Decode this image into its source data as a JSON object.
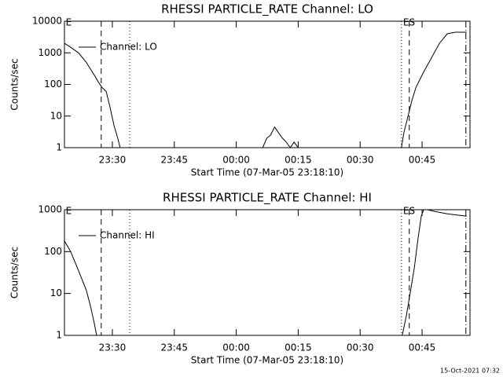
{
  "chart_data": [
    {
      "type": "line",
      "title": "RHESSI PARTICLE_RATE Channel: LO",
      "ylabel": "Counts/sec",
      "xlabel": "Start Time (07-Mar-05 23:18:10)",
      "log_y": true,
      "grid": false,
      "legend": "upper left",
      "xlim": [
        1398.4,
        1496.6
      ],
      "ylim": [
        1,
        10000
      ],
      "xticks": [
        {
          "value": 1410,
          "label": "23:30"
        },
        {
          "value": 1425,
          "label": "23:45"
        },
        {
          "value": 1440,
          "label": "00:00"
        },
        {
          "value": 1455,
          "label": "00:15"
        },
        {
          "value": 1470,
          "label": "00:30"
        },
        {
          "value": 1485,
          "label": "00:45"
        }
      ],
      "yticks": [
        1,
        10,
        100,
        1000,
        10000
      ],
      "series": [
        {
          "name": "Channel: LO",
          "color": "#000000",
          "x": [
            1398.4,
            1399.9,
            1401.8,
            1403.7,
            1405.6,
            1406.6,
            1407.5,
            1408.5,
            1409.4,
            1410.4,
            1411.3,
            1411.9,
            null,
            1446.4,
            1447.4,
            1448.3,
            1449.3,
            1450.2,
            1451.2,
            1452.1,
            1453.1,
            1454.0,
            1455.0,
            null,
            1480.0,
            1480.6,
            1481.6,
            1482.5,
            1483.5,
            1485.4,
            1487.3,
            1489.2,
            1491.1,
            1493.0,
            1495.8
          ],
          "values": [
            2000,
            1500,
            1000,
            500,
            200,
            120,
            80,
            60,
            20,
            5,
            2,
            1,
            null,
            1,
            2,
            2.5,
            4.5,
            3,
            2,
            1.5,
            1,
            1.5,
            1,
            null,
            1,
            3,
            10,
            30,
            80,
            250,
            700,
            2000,
            4000,
            4500,
            4500
          ]
        }
      ],
      "vlines": [
        {
          "x": 1407.3,
          "style": "dashed"
        },
        {
          "x": 1414.2,
          "style": "dotted"
        },
        {
          "x": 1480.0,
          "style": "dotted"
        },
        {
          "x": 1481.9,
          "style": "dashed"
        },
        {
          "x": 1495.6,
          "style": "dashdot"
        }
      ],
      "annotations": [
        {
          "text": "E",
          "x": 1398.7
        },
        {
          "text": "ES",
          "x": 1480.4
        }
      ]
    },
    {
      "type": "line",
      "title": "RHESSI PARTICLE_RATE Channel: HI",
      "ylabel": "Counts/sec",
      "xlabel": "Start Time (07-Mar-05 23:18:10)",
      "log_y": true,
      "grid": false,
      "legend": "upper left",
      "xlim": [
        1398.4,
        1496.6
      ],
      "ylim": [
        1,
        1000
      ],
      "xticks": [
        {
          "value": 1410,
          "label": "23:30"
        },
        {
          "value": 1425,
          "label": "23:45"
        },
        {
          "value": 1440,
          "label": "00:00"
        },
        {
          "value": 1455,
          "label": "00:15"
        },
        {
          "value": 1470,
          "label": "00:30"
        },
        {
          "value": 1485,
          "label": "00:45"
        }
      ],
      "yticks": [
        1,
        10,
        100,
        1000
      ],
      "series": [
        {
          "name": "Channel: HI",
          "color": "#000000",
          "x": [
            1398.4,
            1399.9,
            1401.8,
            1403.7,
            1404.7,
            1405.6,
            1406.2,
            null,
            1480.2,
            1481.2,
            1482.1,
            1483.1,
            1484.0,
            1484.8,
            1485.4,
            1486.3,
            1488.2,
            1491.1,
            1495.8
          ],
          "values": [
            180,
            100,
            35,
            12,
            5,
            2,
            1,
            null,
            1,
            3,
            10,
            40,
            200,
            700,
            1000,
            1000,
            900,
            800,
            700
          ]
        }
      ],
      "vlines": [
        {
          "x": 1407.3,
          "style": "dashed"
        },
        {
          "x": 1414.2,
          "style": "dotted"
        },
        {
          "x": 1480.0,
          "style": "dotted"
        },
        {
          "x": 1481.9,
          "style": "dashed"
        },
        {
          "x": 1495.6,
          "style": "dashdot"
        }
      ],
      "annotations": [
        {
          "text": "E",
          "x": 1398.7
        },
        {
          "text": "ES",
          "x": 1480.4
        }
      ]
    }
  ],
  "footer": "15-Oct-2021 07:32"
}
